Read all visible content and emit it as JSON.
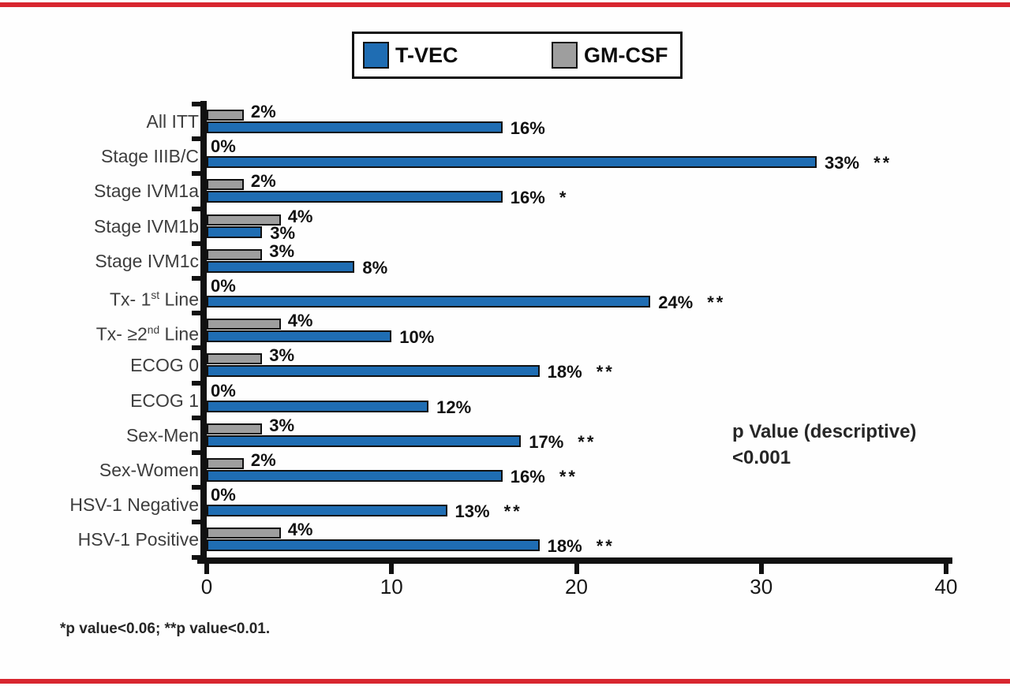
{
  "slide": {
    "accent_red": "#d8262f",
    "background": "#fefefe"
  },
  "legend": {
    "items": [
      {
        "label": "T-VEC",
        "color": "#1f6db3"
      },
      {
        "label": "GM-CSF",
        "color": "#9e9e9e"
      }
    ]
  },
  "annotation": {
    "line1": "p Value (descriptive)",
    "line2": "<0.001"
  },
  "footnote": "*p value<0.06; **p value<0.01.",
  "chart_data": {
    "type": "bar",
    "orientation": "horizontal",
    "title": "",
    "xlabel": "",
    "ylabel": "",
    "xlim": [
      0,
      40
    ],
    "x_ticks": [
      "0",
      "10",
      "20",
      "30",
      "40"
    ],
    "grid": false,
    "legend_position": "top",
    "bar_order_top_to_bottom": [
      "GM-CSF",
      "T-VEC"
    ],
    "categories": [
      "All ITT",
      "Stage IIIB/C",
      "Stage IVM1a",
      "Stage IVM1b",
      "Stage IVM1c",
      "Tx- 1st Line",
      "Tx- ≥2nd Line",
      "ECOG 0",
      "ECOG 1",
      "Sex-Men",
      "Sex-Women",
      "HSV-1 Negative",
      "HSV-1 Positive"
    ],
    "category_rich": [
      [
        {
          "t": "All ITT"
        }
      ],
      [
        {
          "t": "Stage IIIB/C"
        }
      ],
      [
        {
          "t": "Stage IVM1a"
        }
      ],
      [
        {
          "t": "Stage IVM1b"
        }
      ],
      [
        {
          "t": "Stage IVM1c"
        }
      ],
      [
        {
          "t": "Tx- 1"
        },
        {
          "t": "st",
          "sup": true
        },
        {
          "t": " Line"
        }
      ],
      [
        {
          "t": "Tx- ≥2"
        },
        {
          "t": "nd",
          "sup": true
        },
        {
          "t": " Line"
        }
      ],
      [
        {
          "t": "ECOG 0"
        }
      ],
      [
        {
          "t": "ECOG 1"
        }
      ],
      [
        {
          "t": "Sex-Men"
        }
      ],
      [
        {
          "t": "Sex-Women"
        }
      ],
      [
        {
          "t": "HSV-1 Negative"
        }
      ],
      [
        {
          "t": "HSV-1 Positive"
        }
      ]
    ],
    "series": [
      {
        "name": "GM-CSF",
        "color": "#9e9e9e",
        "values": [
          2,
          0,
          2,
          4,
          3,
          0,
          4,
          3,
          0,
          3,
          2,
          0,
          4
        ],
        "labels": [
          "2%",
          "0%",
          "2%",
          "4%",
          "3%",
          "0%",
          "4%",
          "3%",
          "0%",
          "3%",
          "2%",
          "0%",
          "4%"
        ],
        "significance": [
          "",
          "",
          "",
          "",
          "",
          "",
          "",
          "",
          "",
          "",
          "",
          "",
          ""
        ]
      },
      {
        "name": "T-VEC",
        "color": "#1f6db3",
        "values": [
          16,
          33,
          16,
          3,
          8,
          24,
          10,
          18,
          12,
          17,
          16,
          13,
          18
        ],
        "labels": [
          "16%",
          "33%",
          "16%",
          "3%",
          "8%",
          "24%",
          "10%",
          "18%",
          "12%",
          "17%",
          "16%",
          "13%",
          "18%"
        ],
        "significance": [
          "",
          "**",
          "*",
          "",
          "",
          "**",
          "",
          "**",
          "",
          "**",
          "**",
          "**",
          "**"
        ]
      }
    ]
  }
}
